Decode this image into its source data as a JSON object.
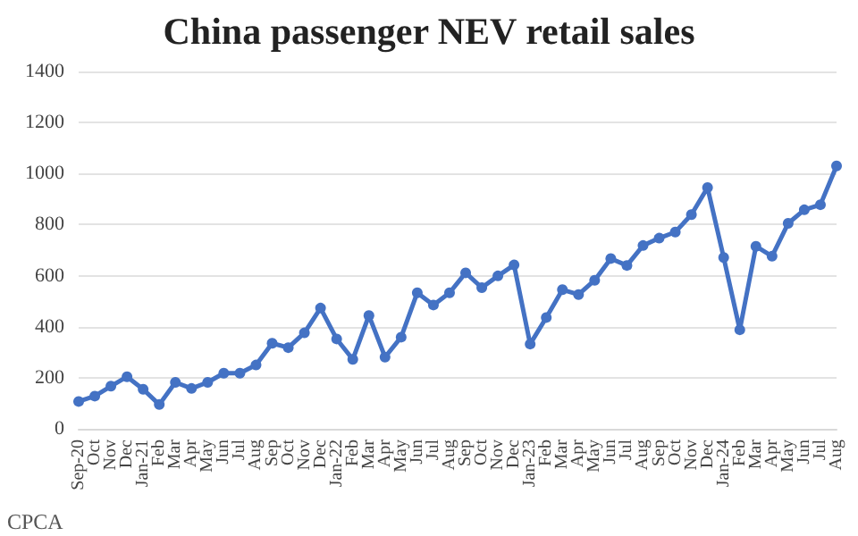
{
  "chart_data": {
    "type": "line",
    "title": "China passenger NEV retail sales",
    "categories": [
      "Sep-20",
      "Oct",
      "Nov",
      "Dec",
      "Jan-21",
      "Feb",
      "Mar",
      "Apr",
      "May",
      "Jun",
      "Jul",
      "Aug",
      "Sep",
      "Oct",
      "Nov",
      "Dec",
      "Jan-22",
      "Feb",
      "Mar",
      "Apr",
      "May",
      "Jun",
      "Jul",
      "Aug",
      "Sep",
      "Oct",
      "Nov",
      "Dec",
      "Jan-23",
      "Feb",
      "Mar",
      "Apr",
      "May",
      "Jun",
      "Jul",
      "Aug",
      "Sep",
      "Oct",
      "Nov",
      "Dec",
      "Jan-24",
      "Feb",
      "Mar",
      "Apr",
      "May",
      "Jun",
      "Jul",
      "Aug"
    ],
    "series": [
      {
        "color": "#4472c4",
        "values": [
          107,
          128,
          167,
          204,
          155,
          95,
          182,
          158,
          182,
          218,
          218,
          250,
          335,
          318,
          376,
          473,
          352,
          272,
          444,
          281,
          359,
          533,
          485,
          533,
          611,
          553,
          599,
          642,
          332,
          436,
          545,
          526,
          582,
          667,
          640,
          718,
          747,
          771,
          839,
          945,
          671,
          388,
          715,
          676,
          805,
          858,
          878,
          1030
        ]
      }
    ],
    "ylim": [
      0,
      1400
    ],
    "yticks": [
      0,
      200,
      400,
      600,
      800,
      1000,
      1200,
      1400
    ],
    "grid": "y",
    "marker": "circle",
    "line_style": "solid",
    "annotations": [
      "CPCA"
    ]
  }
}
